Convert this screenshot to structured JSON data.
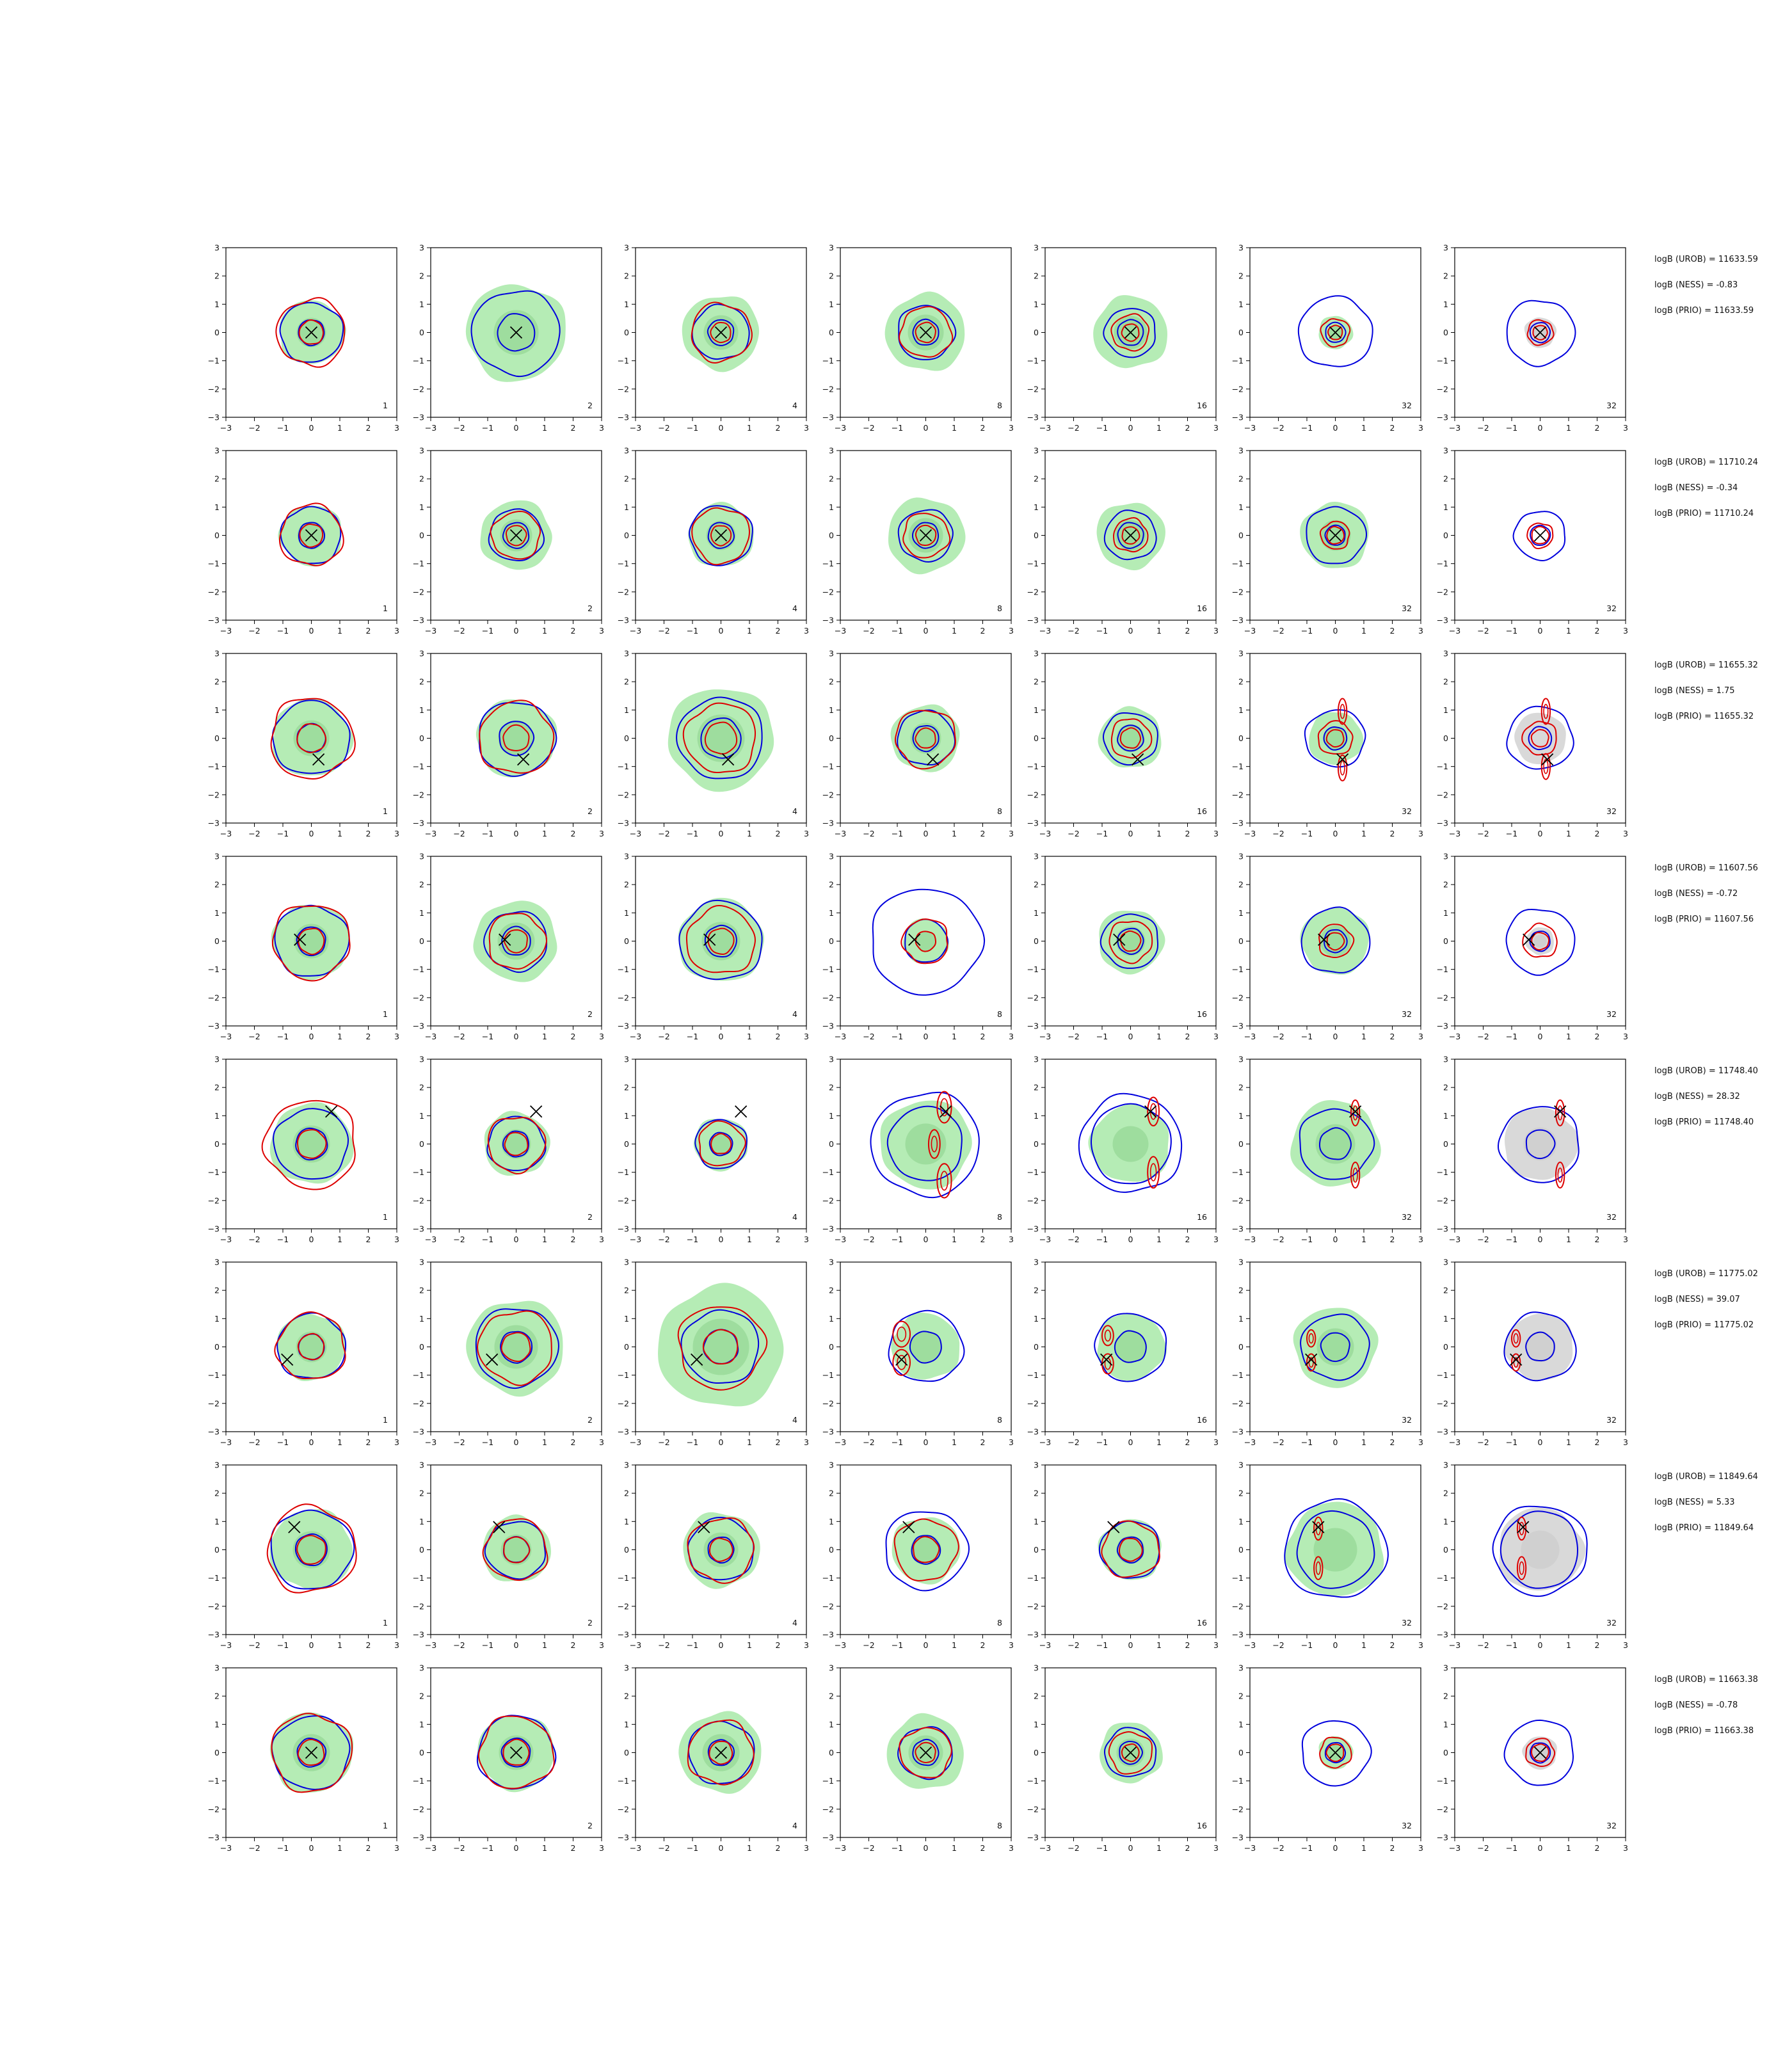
{
  "colors": {
    "density_fill": "#b5ecb5",
    "density_fill_dark": "#8fd48f",
    "prior_fill": "#d9d9d9",
    "blue_contour": "#0000dd",
    "red_contour": "#dd0000",
    "marker": "#000000"
  },
  "chart_data": {
    "type": "contour-grid",
    "rows": 8,
    "cols": 7,
    "xlim": [
      -3,
      3
    ],
    "ylim": [
      -3,
      3
    ],
    "xticks": [
      "−3",
      "−2",
      "−1",
      "0",
      "1",
      "2",
      "3"
    ],
    "yticks": [
      "3",
      "2",
      "1",
      "0",
      "−1",
      "−2",
      "−3"
    ],
    "column_labels": [
      "1",
      "2",
      "4",
      "8",
      "16",
      "32",
      "32"
    ],
    "row_annotations": [
      {
        "urob": "logB (UROB) = 11633.59",
        "ness": "logB (NESS) = -0.83",
        "prio": "logB (PRIO) = 11633.59"
      },
      {
        "urob": "logB (UROB) = 11710.24",
        "ness": "logB (NESS) = -0.34",
        "prio": "logB (PRIO) = 11710.24"
      },
      {
        "urob": "logB (UROB) = 11655.32",
        "ness": "logB (NESS) = 1.75",
        "prio": "logB (PRIO) = 11655.32"
      },
      {
        "urob": "logB (UROB) = 11607.56",
        "ness": "logB (NESS) = -0.72",
        "prio": "logB (PRIO) = 11607.56"
      },
      {
        "urob": "logB (UROB) = 11748.40",
        "ness": "logB (NESS) = 28.32",
        "prio": "logB (PRIO) = 11748.40"
      },
      {
        "urob": "logB (UROB) = 11775.02",
        "ness": "logB (NESS) = 39.07",
        "prio": "logB (PRIO) = 11775.02"
      },
      {
        "urob": "logB (UROB) = 11849.64",
        "ness": "logB (NESS) = 5.33",
        "prio": "logB (PRIO) = 11849.64"
      },
      {
        "urob": "logB (UROB) = 11663.38",
        "ness": "logB (NESS) = -0.78",
        "prio": "logB (PRIO) = 11663.38"
      }
    ],
    "markers": [
      [
        0,
        0
      ],
      [
        0,
        0
      ],
      [
        0.25,
        -0.75
      ],
      [
        -0.4,
        0.05
      ],
      [
        0.7,
        1.15
      ],
      [
        -0.85,
        -0.45
      ],
      [
        -0.6,
        0.8
      ],
      [
        0,
        0
      ]
    ],
    "panels": [
      [
        {
          "fill": 1.15,
          "blue": [
            1.1,
            0.45
          ],
          "red": [
            1.2,
            0.42
          ]
        },
        {
          "fill": 1.75,
          "blue": [
            1.55,
            0.65
          ],
          "red": null
        },
        {
          "fill": 1.35,
          "blue": [
            1.0,
            0.45
          ],
          "red": [
            1.05,
            0.35
          ]
        },
        {
          "fill": 1.4,
          "blue": [
            1.0,
            0.45
          ],
          "red": [
            0.9,
            0.35
          ]
        },
        {
          "fill": 1.3,
          "blue": [
            0.9,
            0.45
          ],
          "red": [
            0.65,
            0.3
          ]
        },
        {
          "fill": 0.6,
          "blue": [
            1.3,
            0.35
          ],
          "red": [
            0.5,
            0.25
          ]
        },
        {
          "fill": 0.55,
          "gray": true,
          "blue": [
            1.2,
            0.35
          ],
          "red": [
            0.45,
            0.25
          ]
        }
      ],
      [
        {
          "fill": 1.1,
          "blue": [
            1.05,
            0.45
          ],
          "red": [
            1.1,
            0.4
          ]
        },
        {
          "fill": 1.25,
          "blue": [
            0.95,
            0.45
          ],
          "red": [
            0.85,
            0.35
          ]
        },
        {
          "fill": 1.15,
          "blue": [
            1.1,
            0.45
          ],
          "red": [
            1.0,
            0.35
          ]
        },
        {
          "fill": 1.35,
          "blue": [
            0.95,
            0.45
          ],
          "red": [
            0.8,
            0.35
          ]
        },
        {
          "fill": 1.2,
          "blue": [
            0.9,
            0.45
          ],
          "red": [
            0.6,
            0.3
          ]
        },
        {
          "fill": 1.2,
          "blue": [
            1.05,
            0.35
          ],
          "red": [
            0.5,
            0.3
          ]
        },
        {
          "fill": 0.0,
          "blue": [
            0.9,
            0.35
          ],
          "red": [
            0.45,
            0.3
          ]
        }
      ],
      [
        {
          "fill": 1.4,
          "blue": [
            1.35,
            0.5
          ],
          "red": [
            1.45,
            0.5
          ]
        },
        {
          "fill": 1.4,
          "blue": [
            1.35,
            0.6
          ],
          "red": [
            1.3,
            0.45
          ]
        },
        {
          "fill": 1.85,
          "blue": [
            1.5,
            0.7
          ],
          "red": [
            1.25,
            0.55
          ]
        },
        {
          "fill": 1.2,
          "blue": [
            1.0,
            0.45
          ],
          "red": [
            1.05,
            0.35
          ]
        },
        {
          "fill": 1.1,
          "blue": [
            0.95,
            0.45
          ],
          "red": [
            0.7,
            0.35
          ]
        },
        {
          "fill": 0.95,
          "blue": [
            1.05,
            0.4
          ],
          "red": [
            0.6,
            0.3
          ]
        },
        {
          "fill": 0.0,
          "gray": true,
          "blue": [
            1.15,
            0.4
          ],
          "red": [
            0.6,
            0.3
          ]
        }
      ],
      [
        {
          "fill": 1.35,
          "blue": [
            1.3,
            0.5
          ],
          "red": [
            1.35,
            0.45
          ]
        },
        {
          "fill": 1.45,
          "blue": [
            1.1,
            0.5
          ],
          "red": [
            1.0,
            0.4
          ]
        },
        {
          "fill": 1.5,
          "blue": [
            1.45,
            0.55
          ],
          "red": [
            1.2,
            0.45
          ]
        },
        {
          "fill": 0.8,
          "blue": [
            1.95,
            0.75
          ],
          "red": [
            0.8,
            0.35
          ]
        },
        {
          "fill": 1.15,
          "blue": [
            1.0,
            0.45
          ],
          "red": [
            0.75,
            0.35
          ]
        },
        {
          "fill": 1.2,
          "blue": [
            1.2,
            0.4
          ],
          "red": [
            0.6,
            0.3
          ]
        },
        {
          "fill": 0.5,
          "gray": true,
          "blue": [
            1.2,
            0.35
          ],
          "red": [
            0.6,
            0.3
          ]
        }
      ],
      [
        {
          "fill": 1.45,
          "blue": [
            1.3,
            0.55
          ],
          "red": [
            1.6,
            0.5
          ]
        },
        {
          "fill": 1.15,
          "blue": [
            1.0,
            0.45
          ],
          "red": [
            1.0,
            0.4
          ]
        },
        {
          "fill": 0.95,
          "blue": [
            0.9,
            0.4
          ],
          "red": [
            0.8,
            0.35
          ]
        },
        {
          "fill": 1.6,
          "blue": [
            1.9,
            1.3
          ],
          "red": null
        },
        {
          "fill": 1.4,
          "blue": [
            1.8,
            1.4
          ],
          "red": null
        },
        {
          "fill": 1.55,
          "blue": [
            1.3,
            0.55
          ],
          "red": null
        },
        {
          "fill": 1.3,
          "gray": true,
          "blue": [
            1.4,
            0.5
          ],
          "red": null
        }
      ],
      [
        {
          "fill": 1.2,
          "blue": [
            1.2,
            0.45
          ],
          "red": [
            1.2,
            0.45
          ]
        },
        {
          "fill": 1.7,
          "blue": [
            1.45,
            0.55
          ],
          "red": [
            1.3,
            0.5
          ]
        },
        {
          "fill": 2.2,
          "blue": [
            1.35,
            0.6
          ],
          "red": [
            1.5,
            0.6
          ]
        },
        {
          "fill": 1.2,
          "blue": [
            1.3,
            0.55
          ],
          "red": null
        },
        {
          "fill": 1.2,
          "blue": [
            1.25,
            0.55
          ],
          "red": null
        },
        {
          "fill": 1.45,
          "blue": [
            1.2,
            0.5
          ],
          "red": null
        },
        {
          "fill": 1.2,
          "gray": true,
          "blue": [
            1.25,
            0.5
          ],
          "red": null
        }
      ],
      [
        {
          "fill": 1.45,
          "blue": [
            1.45,
            0.55
          ],
          "red": [
            1.55,
            0.5
          ]
        },
        {
          "fill": 1.2,
          "blue": [
            1.05,
            0.45
          ],
          "red": [
            1.1,
            0.45
          ]
        },
        {
          "fill": 1.35,
          "blue": [
            1.15,
            0.45
          ],
          "red": [
            1.15,
            0.4
          ]
        },
        {
          "fill": 1.2,
          "blue": [
            1.45,
            0.5
          ],
          "red": [
            1.1,
            0.45
          ]
        },
        {
          "fill": 1.1,
          "blue": [
            1.05,
            0.45
          ],
          "red": [
            1.0,
            0.4
          ]
        },
        {
          "fill": 1.7,
          "blue": [
            1.8,
            1.35
          ],
          "red": null
        },
        {
          "fill": 1.5,
          "gray": true,
          "blue": [
            1.65,
            1.35
          ],
          "red": null
        }
      ],
      [
        {
          "fill": 1.45,
          "blue": [
            1.35,
            0.5
          ],
          "red": [
            1.4,
            0.45
          ]
        },
        {
          "fill": 1.35,
          "blue": [
            1.35,
            0.5
          ],
          "red": [
            1.3,
            0.45
          ]
        },
        {
          "fill": 1.45,
          "blue": [
            1.15,
            0.45
          ],
          "red": [
            1.15,
            0.4
          ]
        },
        {
          "fill": 1.35,
          "blue": [
            0.95,
            0.45
          ],
          "red": [
            0.9,
            0.35
          ]
        },
        {
          "fill": 1.1,
          "blue": [
            0.9,
            0.4
          ],
          "red": [
            0.75,
            0.3
          ]
        },
        {
          "fill": 0.6,
          "blue": [
            1.2,
            0.35
          ],
          "red": [
            0.55,
            0.3
          ]
        },
        {
          "fill": 0.6,
          "gray": true,
          "blue": [
            1.2,
            0.35
          ],
          "red": [
            0.5,
            0.3
          ]
        }
      ]
    ],
    "red_blobs": {
      "2-5": [
        [
          0.25,
          0.95,
          0.15,
          0.45
        ],
        [
          0.25,
          -1.05,
          0.15,
          0.45
        ]
      ],
      "2-6": [
        [
          0.2,
          0.95,
          0.15,
          0.45
        ],
        [
          0.2,
          -1.0,
          0.15,
          0.45
        ]
      ],
      "4-3": [
        [
          0.65,
          1.3,
          0.25,
          0.55
        ],
        [
          0.65,
          -1.3,
          0.25,
          0.6
        ],
        [
          0.3,
          0.0,
          0.2,
          0.5
        ]
      ],
      "4-4": [
        [
          0.8,
          1.15,
          0.2,
          0.5
        ],
        [
          0.8,
          -1.0,
          0.2,
          0.55
        ]
      ],
      "4-5": [
        [
          0.7,
          1.1,
          0.15,
          0.45
        ],
        [
          0.7,
          -1.1,
          0.15,
          0.45
        ]
      ],
      "4-6": [
        [
          0.7,
          1.1,
          0.15,
          0.45
        ],
        [
          0.7,
          -1.1,
          0.15,
          0.45
        ]
      ],
      "5-3": [
        [
          -0.85,
          0.45,
          0.3,
          0.45
        ],
        [
          -0.85,
          -0.55,
          0.3,
          0.45
        ]
      ],
      "5-4": [
        [
          -0.8,
          0.4,
          0.2,
          0.35
        ],
        [
          -0.8,
          -0.6,
          0.2,
          0.35
        ]
      ],
      "5-5": [
        [
          -0.85,
          0.3,
          0.15,
          0.3
        ],
        [
          -0.85,
          -0.55,
          0.15,
          0.3
        ]
      ],
      "5-6": [
        [
          -0.85,
          0.3,
          0.15,
          0.3
        ],
        [
          -0.85,
          -0.55,
          0.15,
          0.3
        ]
      ],
      "6-5": [
        [
          -0.6,
          0.75,
          0.15,
          0.4
        ],
        [
          -0.6,
          -0.65,
          0.15,
          0.4
        ]
      ],
      "6-6": [
        [
          -0.65,
          0.75,
          0.15,
          0.4
        ],
        [
          -0.65,
          -0.65,
          0.15,
          0.4
        ]
      ]
    }
  }
}
